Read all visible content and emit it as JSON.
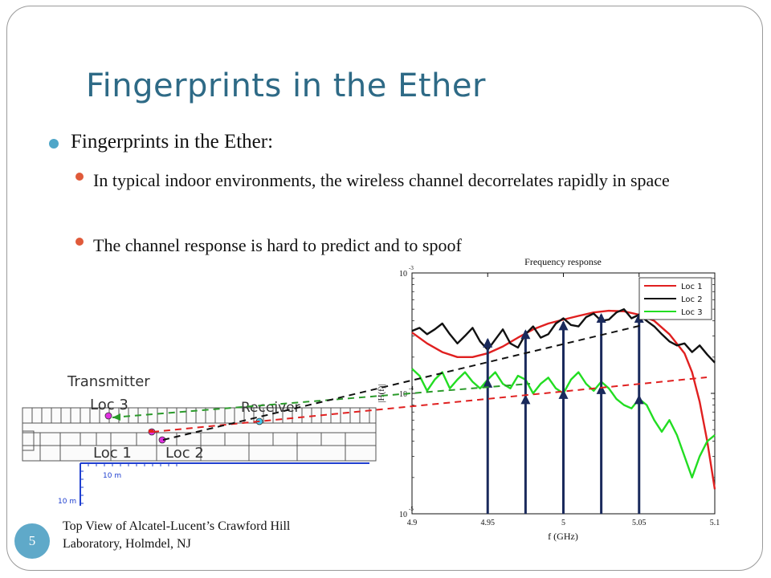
{
  "slide": {
    "title": "Fingerprints in the Ether",
    "bullet_main": "Fingerprints in the Ether:",
    "sub_bullets": [
      "In typical indoor environments, the wireless channel decorrelates rapidly in space",
      "The channel response is hard to predict and to spoof"
    ],
    "page_number": "5",
    "caption": "Top View of Alcatel-Lucent’s Crawford Hill Laboratory, Holmdel, NJ"
  },
  "floorplan": {
    "transmitter_label": "Transmitter",
    "receiver_label": "Receiver",
    "loc3_label": "Loc 3",
    "loc1_label": "Loc 1",
    "loc2_label": "Loc 2",
    "scale_x_label": "10 m",
    "scale_y_label": "10 m"
  },
  "colors": {
    "title": "#2e6a86",
    "loc1": "#e02020",
    "loc2": "#111111",
    "loc3": "#22dd22",
    "arrow": "#1a2a5c"
  },
  "chart_data": {
    "type": "line",
    "title": "Frequency response",
    "xlabel": "f (GHz)",
    "ylabel": "|H(f)|",
    "xlim": [
      4.9,
      5.1
    ],
    "y_scale": "log",
    "ylim": [
      1e-05,
      0.001
    ],
    "x_ticks": [
      "4.9",
      "4.95",
      "5",
      "5.05",
      "5.1"
    ],
    "y_ticks": [
      {
        "base": "10",
        "exp": "-3",
        "value": 0.001
      },
      {
        "base": "10",
        "exp": "-4",
        "value": 0.0001
      },
      {
        "base": "10",
        "exp": "-5",
        "value": 1e-05
      }
    ],
    "legend_position": "top-right",
    "legend": [
      "Loc 1",
      "Loc 2",
      "Loc 3"
    ],
    "series": [
      {
        "name": "Loc 1",
        "color": "#e02020",
        "points": [
          [
            4.9,
            0.00032
          ],
          [
            4.91,
            0.00026
          ],
          [
            4.92,
            0.00022
          ],
          [
            4.93,
            0.0002
          ],
          [
            4.94,
            0.0002
          ],
          [
            4.95,
            0.000215
          ],
          [
            4.96,
            0.000245
          ],
          [
            4.97,
            0.00029
          ],
          [
            4.98,
            0.00034
          ],
          [
            4.99,
            0.00038
          ],
          [
            5.0,
            0.00041
          ],
          [
            5.01,
            0.00044
          ],
          [
            5.02,
            0.00047
          ],
          [
            5.03,
            0.000485
          ],
          [
            5.04,
            0.00048
          ],
          [
            5.05,
            0.00045
          ],
          [
            5.06,
            0.0004
          ],
          [
            5.07,
            0.00031
          ],
          [
            5.08,
            0.000215
          ],
          [
            5.085,
            0.00015
          ],
          [
            5.09,
            8.5e-05
          ],
          [
            5.095,
            4e-05
          ],
          [
            5.1,
            1.6e-05
          ]
        ]
      },
      {
        "name": "Loc 2",
        "color": "#111111",
        "points": [
          [
            4.9,
            0.00033
          ],
          [
            4.905,
            0.00035
          ],
          [
            4.91,
            0.00031
          ],
          [
            4.915,
            0.00034
          ],
          [
            4.92,
            0.00038
          ],
          [
            4.925,
            0.00031
          ],
          [
            4.93,
            0.00026
          ],
          [
            4.935,
            0.0003
          ],
          [
            4.94,
            0.00035
          ],
          [
            4.945,
            0.00027
          ],
          [
            4.95,
            0.00023
          ],
          [
            4.955,
            0.00028
          ],
          [
            4.96,
            0.00034
          ],
          [
            4.965,
            0.00026
          ],
          [
            4.97,
            0.00024
          ],
          [
            4.975,
            0.00031
          ],
          [
            4.98,
            0.00036
          ],
          [
            4.985,
            0.00029
          ],
          [
            4.99,
            0.00031
          ],
          [
            4.995,
            0.00038
          ],
          [
            5.0,
            0.00042
          ],
          [
            5.005,
            0.00037
          ],
          [
            5.01,
            0.00036
          ],
          [
            5.015,
            0.00043
          ],
          [
            5.02,
            0.00046
          ],
          [
            5.025,
            0.0004
          ],
          [
            5.03,
            0.00041
          ],
          [
            5.035,
            0.00047
          ],
          [
            5.04,
            0.0005
          ],
          [
            5.045,
            0.00042
          ],
          [
            5.05,
            0.00045
          ],
          [
            5.055,
            0.0004
          ],
          [
            5.06,
            0.00036
          ],
          [
            5.065,
            0.00031
          ],
          [
            5.07,
            0.00027
          ],
          [
            5.075,
            0.00025
          ],
          [
            5.08,
            0.00026
          ],
          [
            5.085,
            0.00022
          ],
          [
            5.09,
            0.00025
          ],
          [
            5.095,
            0.00021
          ],
          [
            5.1,
            0.00018
          ]
        ]
      },
      {
        "name": "Loc 3",
        "color": "#22dd22",
        "points": [
          [
            4.9,
            0.00016
          ],
          [
            4.905,
            0.00014
          ],
          [
            4.91,
            0.000105
          ],
          [
            4.915,
            0.00013
          ],
          [
            4.92,
            0.00015
          ],
          [
            4.925,
            0.00011
          ],
          [
            4.93,
            0.00013
          ],
          [
            4.935,
            0.00015
          ],
          [
            4.94,
            0.000125
          ],
          [
            4.945,
            0.00011
          ],
          [
            4.95,
            0.00013
          ],
          [
            4.955,
            0.00015
          ],
          [
            4.96,
            0.00012
          ],
          [
            4.965,
            0.00011
          ],
          [
            4.97,
            0.00014
          ],
          [
            4.975,
            0.00013
          ],
          [
            4.98,
            0.0001
          ],
          [
            4.985,
            0.00012
          ],
          [
            4.99,
            0.000135
          ],
          [
            4.995,
            0.00011
          ],
          [
            5.0,
            0.0001
          ],
          [
            5.005,
            0.00013
          ],
          [
            5.01,
            0.00015
          ],
          [
            5.015,
            0.00012
          ],
          [
            5.02,
            0.000105
          ],
          [
            5.025,
            0.000125
          ],
          [
            5.03,
            0.00011
          ],
          [
            5.035,
            9e-05
          ],
          [
            5.04,
            8e-05
          ],
          [
            5.045,
            7.5e-05
          ],
          [
            5.05,
            9e-05
          ],
          [
            5.055,
            8e-05
          ],
          [
            5.06,
            6e-05
          ],
          [
            5.065,
            4.8e-05
          ],
          [
            5.07,
            6e-05
          ],
          [
            5.075,
            4.5e-05
          ],
          [
            5.08,
            3e-05
          ],
          [
            5.085,
            2e-05
          ],
          [
            5.09,
            3e-05
          ],
          [
            5.095,
            4e-05
          ],
          [
            5.1,
            4.5e-05
          ]
        ]
      }
    ],
    "arrow_frequencies": [
      4.95,
      4.975,
      5.0,
      5.025,
      5.05
    ],
    "arrow_heads_loc2": [
      0.00028,
      0.00033,
      0.00039,
      0.00045,
      0.00045
    ],
    "arrow_heads_loc3": [
      0.00013,
      9.5e-05,
      0.000105,
      0.000115,
      9.5e-05
    ]
  }
}
